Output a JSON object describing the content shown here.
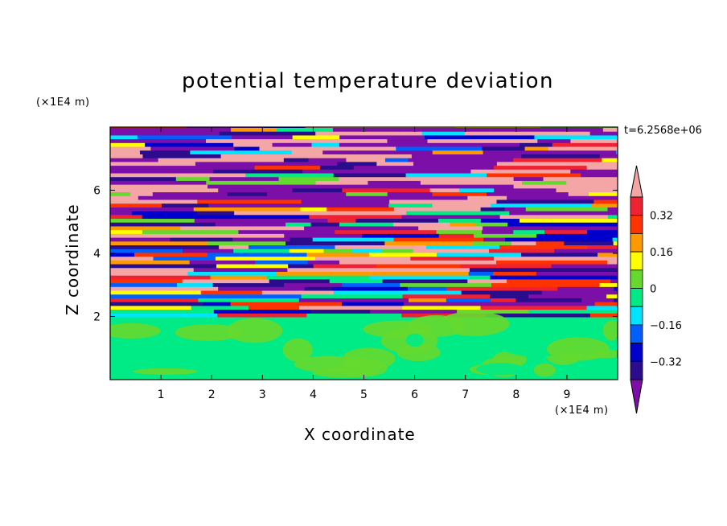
{
  "chart_data": {
    "type": "heatmap",
    "title": "potential temperature deviation",
    "xlabel": "X coordinate",
    "ylabel": "Z coordinate",
    "x_unit": "(×1E4 m)",
    "z_unit": "(×1E4 m)",
    "timestamp": "t=6.2568e+06",
    "xlim": [
      0,
      10
    ],
    "ylim": [
      0,
      8
    ],
    "x_ticks": [
      "1",
      "2",
      "3",
      "4",
      "5",
      "6",
      "7",
      "8",
      "9"
    ],
    "y_ticks": [
      "2",
      "4",
      "6"
    ],
    "colorbar": {
      "tick_labels": [
        "0.32",
        "0.16",
        "0",
        "−0.16",
        "−0.32"
      ],
      "colors": [
        "#7b0fa8",
        "#2a0c8c",
        "#0000cc",
        "#0060ff",
        "#00e5ff",
        "#00ea86",
        "#66d92e",
        "#ffff00",
        "#ff9900",
        "#ff3300",
        "#ee2233",
        "#f4a6a6"
      ]
    }
  }
}
